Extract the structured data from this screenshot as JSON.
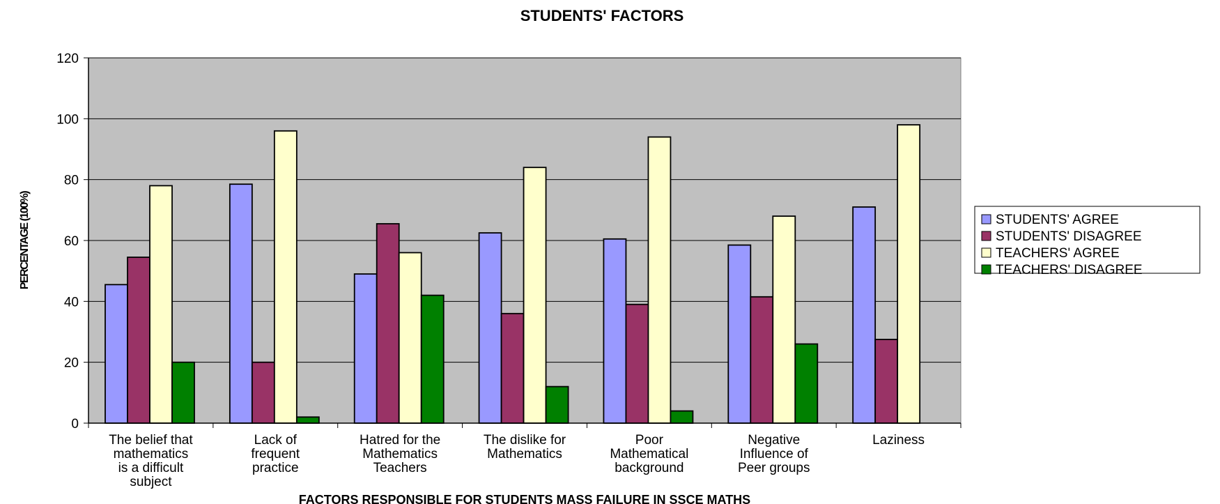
{
  "chart_data": {
    "type": "bar",
    "title": "STUDENTS' FACTORS",
    "xlabel": "FACTORS RESPONSIBLE FOR STUDENTS MASS FAILURE IN SSCE MATHS",
    "ylabel": "PERCENTAGE (100%)",
    "ylim": [
      0,
      120
    ],
    "yticks": [
      0,
      20,
      40,
      60,
      80,
      100,
      120
    ],
    "grid": true,
    "legend_position": "right",
    "categories": [
      [
        "The belief that",
        "mathematics",
        "is a difficult",
        "subject"
      ],
      [
        "Lack of",
        "frequent",
        "practice"
      ],
      [
        "Hatred for the",
        "Mathematics",
        "Teachers"
      ],
      [
        "The dislike for",
        "Mathematics"
      ],
      [
        "Poor",
        "Mathematical",
        "background"
      ],
      [
        "Negative",
        "Influence of",
        "Peer groups"
      ],
      [
        "Laziness"
      ]
    ],
    "series": [
      {
        "name": "STUDENTS' AGREE",
        "color": "#9999ff",
        "values": [
          45.5,
          78.5,
          49,
          62.5,
          60.5,
          58.5,
          71
        ]
      },
      {
        "name": "STUDENTS' DISAGREE",
        "color": "#993366",
        "values": [
          54.5,
          20,
          65.5,
          36,
          39,
          41.5,
          27.5
        ]
      },
      {
        "name": "TEACHERS' AGREE",
        "color": "#ffffcc",
        "values": [
          78,
          96,
          56,
          84,
          94,
          68,
          98
        ]
      },
      {
        "name": "TEACHERS' DISAGREE",
        "color": "#008000",
        "values": [
          20,
          2,
          42,
          12,
          4,
          26,
          0
        ]
      }
    ],
    "plot_background": "#c0c0c0",
    "bar_outline": "#000000"
  }
}
